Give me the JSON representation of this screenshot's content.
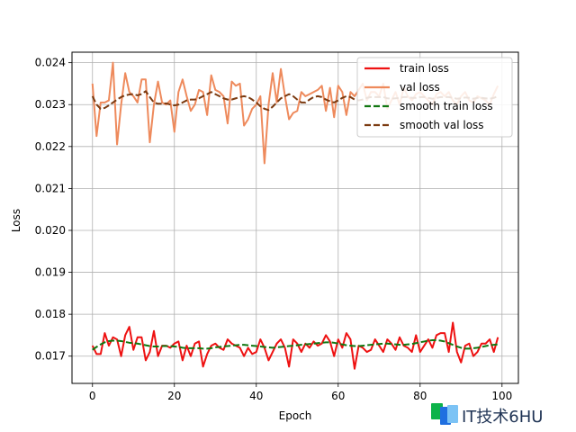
{
  "chart_data": {
    "type": "line",
    "title": "",
    "xlabel": "Epoch",
    "ylabel": "Loss",
    "xlim": [
      -5,
      104
    ],
    "ylim": [
      0.01635,
      0.02425
    ],
    "xticks": [
      0,
      20,
      40,
      60,
      80,
      100
    ],
    "yticks": [
      0.017,
      0.018,
      0.019,
      0.02,
      0.021,
      0.022,
      0.023,
      0.024
    ],
    "xtick_labels": [
      "0",
      "20",
      "40",
      "60",
      "80",
      "100"
    ],
    "ytick_labels": [
      "0.017",
      "0.018",
      "0.019",
      "0.020",
      "0.021",
      "0.022",
      "0.023",
      "0.024"
    ],
    "grid": true,
    "legend_position": "top-right",
    "series": [
      {
        "name": "train loss",
        "color": "#ee1111",
        "style": "solid",
        "x_start": 0,
        "values": [
          0.01725,
          0.01705,
          0.01705,
          0.01755,
          0.01725,
          0.01745,
          0.0174,
          0.017,
          0.0175,
          0.0177,
          0.01715,
          0.01745,
          0.01745,
          0.0169,
          0.0171,
          0.0176,
          0.017,
          0.01725,
          0.01725,
          0.0172,
          0.0173,
          0.01735,
          0.0169,
          0.01725,
          0.017,
          0.0173,
          0.01735,
          0.01675,
          0.01705,
          0.01725,
          0.0173,
          0.0172,
          0.01715,
          0.0174,
          0.0173,
          0.01725,
          0.0172,
          0.017,
          0.0172,
          0.01705,
          0.0171,
          0.0174,
          0.0172,
          0.0169,
          0.0171,
          0.0173,
          0.0174,
          0.0172,
          0.01675,
          0.0174,
          0.0173,
          0.0171,
          0.0173,
          0.0172,
          0.01735,
          0.01725,
          0.0173,
          0.0175,
          0.01735,
          0.017,
          0.0174,
          0.0172,
          0.01755,
          0.0174,
          0.0167,
          0.01725,
          0.0172,
          0.0171,
          0.01715,
          0.0174,
          0.01725,
          0.0171,
          0.0174,
          0.0173,
          0.01715,
          0.01745,
          0.01725,
          0.0172,
          0.0171,
          0.0175,
          0.0171,
          0.01725,
          0.0174,
          0.0172,
          0.0175,
          0.01755,
          0.01755,
          0.0171,
          0.0178,
          0.0171,
          0.01685,
          0.01725,
          0.0173,
          0.017,
          0.0171,
          0.0173,
          0.0173,
          0.0174,
          0.0171,
          0.01745
        ]
      },
      {
        "name": "val loss",
        "color": "#ee8a5c",
        "style": "solid",
        "x_start": 0,
        "values": [
          0.0235,
          0.02225,
          0.02305,
          0.02305,
          0.0231,
          0.024,
          0.02205,
          0.023,
          0.02375,
          0.0233,
          0.0232,
          0.02305,
          0.0236,
          0.0236,
          0.0221,
          0.023,
          0.02355,
          0.02305,
          0.023,
          0.0231,
          0.02235,
          0.0233,
          0.0236,
          0.0232,
          0.02285,
          0.023,
          0.02335,
          0.0233,
          0.02275,
          0.0237,
          0.02335,
          0.0233,
          0.0232,
          0.02255,
          0.02355,
          0.02345,
          0.0235,
          0.0225,
          0.02265,
          0.0229,
          0.023,
          0.0232,
          0.0216,
          0.023,
          0.02375,
          0.02305,
          0.02385,
          0.0232,
          0.02265,
          0.0228,
          0.02285,
          0.0233,
          0.0232,
          0.02325,
          0.0233,
          0.02335,
          0.02345,
          0.02285,
          0.0234,
          0.0227,
          0.02345,
          0.0233,
          0.02275,
          0.0233,
          0.0232,
          0.02335,
          0.0235,
          0.0231,
          0.0233,
          0.0233,
          0.0232,
          0.0235,
          0.0229,
          0.0231,
          0.0233,
          0.023,
          0.0234,
          0.0232,
          0.0231,
          0.02325,
          0.0233,
          0.0232,
          0.0231,
          0.023,
          0.02325,
          0.0233,
          0.0232,
          0.0233,
          0.0231,
          0.023,
          0.0232,
          0.0233,
          0.0231,
          0.02305,
          0.0232,
          0.02315,
          0.0231,
          0.023,
          0.02325,
          0.02345
        ]
      },
      {
        "name": "smooth train loss",
        "color": "#117711",
        "style": "dashed",
        "x_start": 0,
        "values": [
          0.01715,
          0.01722,
          0.01728,
          0.01733,
          0.01736,
          0.01737,
          0.01737,
          0.01736,
          0.01734,
          0.01732,
          0.01731,
          0.0173,
          0.01728,
          0.01726,
          0.01724,
          0.01723,
          0.01723,
          0.01724,
          0.01724,
          0.01724,
          0.01723,
          0.01722,
          0.0172,
          0.01719,
          0.01719,
          0.01719,
          0.01719,
          0.01718,
          0.01718,
          0.01719,
          0.01721,
          0.01722,
          0.01723,
          0.01724,
          0.01725,
          0.01726,
          0.01727,
          0.01727,
          0.01726,
          0.01725,
          0.01724,
          0.01723,
          0.01722,
          0.01721,
          0.0172,
          0.01721,
          0.01722,
          0.01723,
          0.01724,
          0.01725,
          0.01726,
          0.01727,
          0.01728,
          0.01729,
          0.0173,
          0.01731,
          0.01732,
          0.01733,
          0.01733,
          0.01732,
          0.0173,
          0.01728,
          0.01726,
          0.01725,
          0.01724,
          0.01724,
          0.01725,
          0.01726,
          0.01727,
          0.01728,
          0.01729,
          0.0173,
          0.0173,
          0.01729,
          0.01728,
          0.01727,
          0.01727,
          0.01728,
          0.01729,
          0.01731,
          0.01733,
          0.01735,
          0.01737,
          0.01738,
          0.01738,
          0.01737,
          0.01735,
          0.01731,
          0.01727,
          0.01723,
          0.0172,
          0.01718,
          0.01718,
          0.01719,
          0.0172,
          0.01722,
          0.01724,
          0.01726,
          0.01727,
          0.01728
        ]
      },
      {
        "name": "smooth val loss",
        "color": "#7b3a10",
        "style": "dashed",
        "x_start": 0,
        "values": [
          0.0232,
          0.023,
          0.0229,
          0.02292,
          0.02298,
          0.02305,
          0.02312,
          0.02318,
          0.02322,
          0.02324,
          0.02325,
          0.02322,
          0.02325,
          0.02332,
          0.02318,
          0.02305,
          0.02302,
          0.02302,
          0.02303,
          0.023,
          0.02298,
          0.023,
          0.02305,
          0.0231,
          0.02312,
          0.02312,
          0.02315,
          0.0232,
          0.02325,
          0.0233,
          0.02325,
          0.0232,
          0.02315,
          0.02312,
          0.02312,
          0.02315,
          0.02318,
          0.0232,
          0.02318,
          0.02312,
          0.02305,
          0.02296,
          0.0229,
          0.02287,
          0.02295,
          0.02305,
          0.02315,
          0.0232,
          0.02325,
          0.0232,
          0.02312,
          0.02305,
          0.02305,
          0.02312,
          0.02318,
          0.0232,
          0.02318,
          0.02312,
          0.02308,
          0.02305,
          0.0231,
          0.02316,
          0.0232,
          0.02318,
          0.02312,
          0.0231,
          0.02312,
          0.02316,
          0.02318,
          0.02318,
          0.02318,
          0.02318,
          0.02315,
          0.02314,
          0.02315,
          0.02316,
          0.02318,
          0.02318,
          0.02316,
          0.02316,
          0.02318,
          0.02318,
          0.02316,
          0.02314,
          0.02316,
          0.02318,
          0.02318,
          0.02318,
          0.02316,
          0.02314,
          0.02315,
          0.02317,
          0.02316,
          0.02314,
          0.02316,
          0.02316,
          0.02315,
          0.02314,
          0.02316,
          0.0232
        ]
      }
    ]
  },
  "watermark": {
    "text": "IT技术6HU",
    "colors": [
      "#0cb34a",
      "#1f6fe0",
      "#7cc3f5"
    ]
  }
}
